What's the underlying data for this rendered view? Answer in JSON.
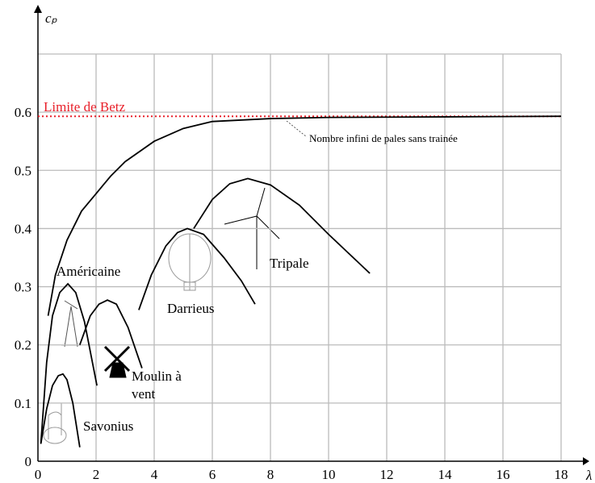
{
  "chart_data": {
    "type": "line",
    "ylabel": "cₚ",
    "xlabel": "λ",
    "xlim": [
      0,
      18
    ],
    "ylim": [
      0,
      0.7
    ],
    "xticks": [
      0,
      2,
      4,
      6,
      8,
      10,
      12,
      14,
      16,
      18
    ],
    "yticks": [
      0,
      0.1,
      0.2,
      0.3,
      0.4,
      0.5,
      0.6
    ],
    "grid": true,
    "reference_line": {
      "label": "Limite de Betz",
      "value": 0.593,
      "color": "#e8202a"
    },
    "series": [
      {
        "name": "Nombre infini de pales sans trainée",
        "color": "#000000",
        "x": [
          0.35,
          0.6,
          1,
          1.5,
          2,
          2.5,
          3,
          4,
          5,
          6,
          8,
          10,
          14,
          18
        ],
        "values": [
          0.25,
          0.32,
          0.38,
          0.43,
          0.46,
          0.49,
          0.515,
          0.55,
          0.572,
          0.584,
          0.589,
          0.591,
          0.592,
          0.593
        ]
      },
      {
        "name": "Savonius",
        "color": "#000000",
        "x": [
          0.1,
          0.3,
          0.5,
          0.7,
          0.86,
          1.0,
          1.2,
          1.44
        ],
        "values": [
          0.03,
          0.09,
          0.13,
          0.147,
          0.15,
          0.14,
          0.1,
          0.024
        ]
      },
      {
        "name": "Américaine",
        "color": "#000000",
        "x": [
          0.1,
          0.3,
          0.5,
          0.75,
          1.03,
          1.3,
          1.6,
          2.03
        ],
        "values": [
          0.03,
          0.17,
          0.25,
          0.29,
          0.305,
          0.29,
          0.24,
          0.13
        ]
      },
      {
        "name": "Moulin à vent",
        "color": "#000000",
        "x": [
          1.44,
          1.8,
          2.1,
          2.39,
          2.7,
          3.1,
          3.58
        ],
        "values": [
          0.2,
          0.25,
          0.27,
          0.277,
          0.27,
          0.23,
          0.16
        ]
      },
      {
        "name": "Darrieus",
        "color": "#000000",
        "x": [
          3.47,
          3.9,
          4.4,
          4.8,
          5.14,
          5.7,
          6.4,
          7.0,
          7.47
        ],
        "values": [
          0.26,
          0.32,
          0.37,
          0.393,
          0.4,
          0.39,
          0.35,
          0.31,
          0.27
        ]
      },
      {
        "name": "Tripale",
        "color": "#000000",
        "x": [
          5.36,
          6.0,
          6.6,
          7.22,
          8.0,
          9.0,
          10.0,
          11.42
        ],
        "values": [
          0.4,
          0.45,
          0.477,
          0.486,
          0.475,
          0.44,
          0.39,
          0.323
        ]
      }
    ]
  }
}
